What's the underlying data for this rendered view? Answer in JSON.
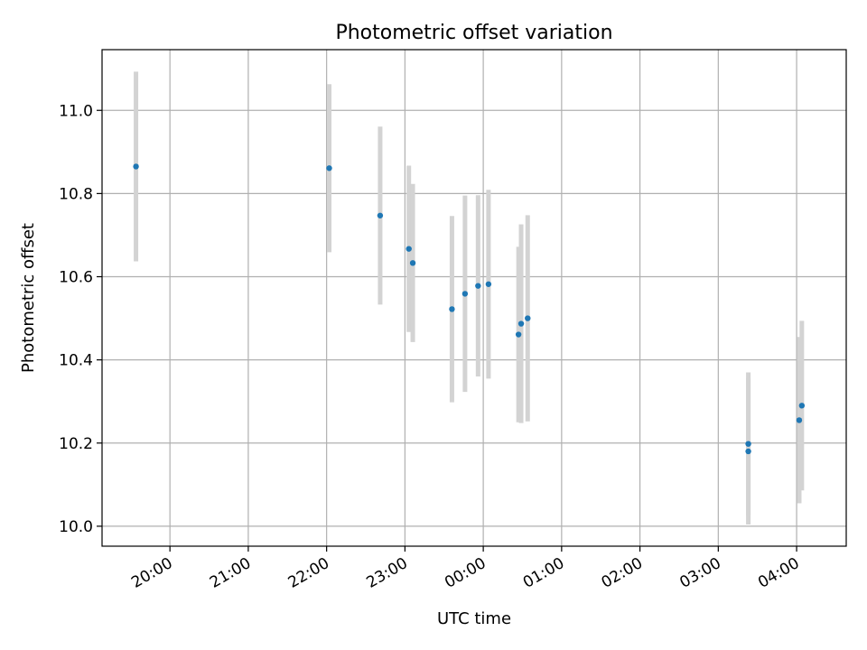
{
  "chart_data": {
    "type": "scatter",
    "title": "Photometric offset variation",
    "xlabel": "UTC time",
    "ylabel": "Photometric offset",
    "x_tick_labels": [
      "20:00",
      "21:00",
      "22:00",
      "23:00",
      "00:00",
      "01:00",
      "02:00",
      "03:00",
      "04:00"
    ],
    "y_tick_labels": [
      "10.0",
      "10.2",
      "10.4",
      "10.6",
      "10.8",
      "11.0"
    ],
    "y_ticks": [
      10.0,
      10.2,
      10.4,
      10.6,
      10.8,
      11.0
    ],
    "xlim": [
      "19:08",
      "04:38"
    ],
    "ylim": [
      9.952,
      11.146
    ],
    "grid": true,
    "marker_color": "#1f77b4",
    "errorbar_color": "#d3d3d3",
    "series": [
      {
        "points": [
          {
            "x": "19:34",
            "y": 10.865,
            "yerr": 0.228
          },
          {
            "x": "22:02",
            "y": 10.861,
            "yerr": 0.202
          },
          {
            "x": "22:41",
            "y": 10.747,
            "yerr": 0.214
          },
          {
            "x": "23:03",
            "y": 10.667,
            "yerr": 0.2
          },
          {
            "x": "23:06",
            "y": 10.633,
            "yerr": 0.19
          },
          {
            "x": "23:36",
            "y": 10.522,
            "yerr": 0.224
          },
          {
            "x": "23:46",
            "y": 10.559,
            "yerr": 0.236
          },
          {
            "x": "23:56",
            "y": 10.578,
            "yerr": 0.218
          },
          {
            "x": "00:04",
            "y": 10.582,
            "yerr": 0.227
          },
          {
            "x": "00:27",
            "y": 10.461,
            "yerr": 0.211
          },
          {
            "x": "00:29",
            "y": 10.487,
            "yerr": 0.239
          },
          {
            "x": "00:34",
            "y": 10.5,
            "yerr": 0.248
          },
          {
            "x": "03:23",
            "y": 10.198,
            "yerr": 0.172
          },
          {
            "x": "03:23",
            "y": 10.18,
            "yerr": 0.176
          },
          {
            "x": "04:02",
            "y": 10.255,
            "yerr": 0.2
          },
          {
            "x": "04:04",
            "y": 10.29,
            "yerr": 0.204
          }
        ]
      }
    ]
  }
}
